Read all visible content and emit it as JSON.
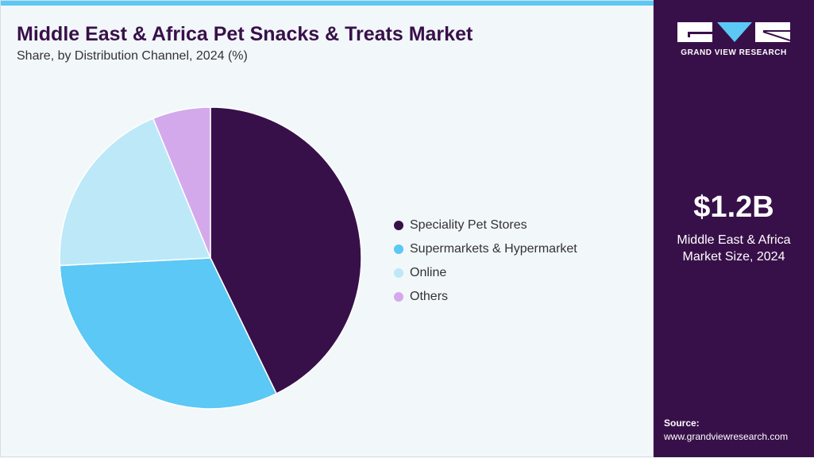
{
  "header": {
    "title": "Middle East & Africa Pet Snacks & Treats Market",
    "subtitle": "Share, by Distribution Channel, 2024 (%)"
  },
  "sidebar": {
    "logo_text": "GRAND VIEW RESEARCH",
    "market_size": "$1.2B",
    "caption_line1": "Middle East & Africa",
    "caption_line2": "Market Size, 2024",
    "source_label": "Source:",
    "source_url": "www.grandviewresearch.com"
  },
  "colors": {
    "accent": "#5bc8f5",
    "brand": "#381049"
  },
  "chart_data": {
    "type": "pie",
    "title": "Middle East & Africa Pet Snacks & Treats Market",
    "subtitle": "Share, by Distribution Channel, 2024 (%)",
    "legend_position": "right",
    "categories": [
      "Speciality Pet Stores",
      "Supermarkets & Hypermarket",
      "Online",
      "Others"
    ],
    "values": [
      42.8,
      31.4,
      19.6,
      6.2
    ],
    "colors": [
      "#381049",
      "#5bc8f5",
      "#bde8f8",
      "#d4a9ec"
    ]
  }
}
